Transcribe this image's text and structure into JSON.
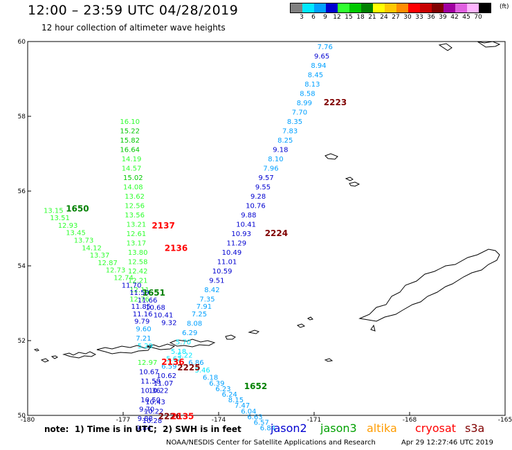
{
  "header": {
    "title": "12:00 – 23:59 UTC 04/28/2019",
    "subtitle": "12 hour collection of altimeter wave heights"
  },
  "legend": {
    "unit": "(ft)",
    "items": [
      {
        "label": "3",
        "color": "#808080"
      },
      {
        "label": "6",
        "color": "#00e8ff"
      },
      {
        "label": "9",
        "color": "#00a0ff"
      },
      {
        "label": "12",
        "color": "#0000d0"
      },
      {
        "label": "15",
        "color": "#30ff30"
      },
      {
        "label": "18",
        "color": "#00c800"
      },
      {
        "label": "21",
        "color": "#008000"
      },
      {
        "label": "24",
        "color": "#ffff00"
      },
      {
        "label": "27",
        "color": "#ffc800"
      },
      {
        "label": "30",
        "color": "#ff8c00"
      },
      {
        "label": "33",
        "color": "#ff0000"
      },
      {
        "label": "36",
        "color": "#c80000"
      },
      {
        "label": "39",
        "color": "#800000"
      },
      {
        "label": "42",
        "color": "#a000a0"
      },
      {
        "label": "45",
        "color": "#e060e0"
      },
      {
        "label": "70",
        "color": "#ffb4ff"
      },
      {
        "label": "",
        "color": "#000000"
      }
    ]
  },
  "map": {
    "lon_range": [
      -180,
      -165
    ],
    "lat_range": [
      50,
      60
    ],
    "lon_ticks": [
      "-180",
      "-177",
      "-174",
      "-171",
      "-168",
      "-165"
    ],
    "lat_ticks": [
      "60",
      "58",
      "56",
      "54",
      "52",
      "50"
    ],
    "tracks": [
      {
        "satellite": "jason3",
        "points": [
          {
            "lon": -177.1,
            "lat": 57.8,
            "value": "16.10",
            "color": "#30ff30"
          },
          {
            "lon": -177.1,
            "lat": 57.55,
            "value": "15.22",
            "color": "#00c800"
          },
          {
            "lon": -177.1,
            "lat": 57.3,
            "value": "15.82",
            "color": "#00c800"
          },
          {
            "lon": -177.1,
            "lat": 57.05,
            "value": "16.64",
            "color": "#00c800"
          },
          {
            "lon": -177.05,
            "lat": 56.8,
            "value": "14.19",
            "color": "#30ff30"
          },
          {
            "lon": -177.05,
            "lat": 56.55,
            "value": "14.57",
            "color": "#30ff30"
          },
          {
            "lon": -177.0,
            "lat": 56.3,
            "value": "15.02",
            "color": "#00c800"
          },
          {
            "lon": -177.0,
            "lat": 56.05,
            "value": "14.08",
            "color": "#30ff30"
          },
          {
            "lon": -176.95,
            "lat": 55.8,
            "value": "13.62",
            "color": "#30ff30"
          },
          {
            "lon": -176.95,
            "lat": 55.55,
            "value": "12.56",
            "color": "#30ff30"
          },
          {
            "lon": -176.95,
            "lat": 55.3,
            "value": "13.56",
            "color": "#30ff30"
          },
          {
            "lon": -176.9,
            "lat": 55.05,
            "value": "13.21",
            "color": "#30ff30"
          },
          {
            "lon": -176.9,
            "lat": 54.8,
            "value": "12.61",
            "color": "#30ff30"
          },
          {
            "lon": -176.9,
            "lat": 54.55,
            "value": "13.17",
            "color": "#30ff30"
          },
          {
            "lon": -176.85,
            "lat": 54.3,
            "value": "13.80",
            "color": "#30ff30"
          },
          {
            "lon": -176.85,
            "lat": 54.05,
            "value": "12.58",
            "color": "#30ff30"
          },
          {
            "lon": -176.85,
            "lat": 53.8,
            "value": "12.42",
            "color": "#30ff30"
          },
          {
            "lon": -176.85,
            "lat": 53.55,
            "value": "12.21",
            "color": "#30ff30"
          },
          {
            "lon": -176.8,
            "lat": 53.3,
            "value": "12.11",
            "color": "#30ff30"
          },
          {
            "lon": -176.8,
            "lat": 53.05,
            "value": "12.76",
            "color": "#30ff30"
          },
          {
            "lon": -176.75,
            "lat": 52.85,
            "value": "11.85",
            "color": "#0000d0"
          },
          {
            "lon": -176.7,
            "lat": 52.65,
            "value": "11.16",
            "color": "#0000d0"
          },
          {
            "lon": -176.65,
            "lat": 52.45,
            "value": "9.79",
            "color": "#0000d0"
          },
          {
            "lon": -176.6,
            "lat": 52.25,
            "value": "9.60",
            "color": "#00a0ff"
          },
          {
            "lon": -176.6,
            "lat": 52.0,
            "value": "7.21",
            "color": "#00a0ff"
          },
          {
            "lon": -176.55,
            "lat": 51.8,
            "value": "5.29",
            "color": "#00e8ff"
          },
          {
            "lon": -176.55,
            "lat": 51.35,
            "value": "12.97",
            "color": "#30ff30"
          },
          {
            "lon": -176.5,
            "lat": 51.1,
            "value": "10.67",
            "color": "#0000d0"
          },
          {
            "lon": -176.45,
            "lat": 50.85,
            "value": "11.58",
            "color": "#0000d0"
          },
          {
            "lon": -176.45,
            "lat": 50.6,
            "value": "10.36",
            "color": "#0000d0"
          },
          {
            "lon": -176.45,
            "lat": 50.35,
            "value": "10.50",
            "color": "#0000d0"
          },
          {
            "lon": -176.5,
            "lat": 50.1,
            "value": "9.70",
            "color": "#0000d0"
          },
          {
            "lon": -176.55,
            "lat": 49.85,
            "value": "9.88",
            "color": "#0000d0"
          },
          {
            "lon": -176.6,
            "lat": 49.6,
            "value": "9.84",
            "color": "#0000d0"
          }
        ]
      },
      {
        "satellite": "jason3",
        "points": [
          {
            "lon": -179.5,
            "lat": 55.42,
            "value": "13.15",
            "color": "#30ff30"
          },
          {
            "lon": -179.3,
            "lat": 55.22,
            "value": "13.51",
            "color": "#30ff30"
          },
          {
            "lon": -179.05,
            "lat": 55.02,
            "value": "12.93",
            "color": "#30ff30"
          },
          {
            "lon": -178.8,
            "lat": 54.82,
            "value": "13.45",
            "color": "#30ff30"
          },
          {
            "lon": -178.55,
            "lat": 54.62,
            "value": "13.73",
            "color": "#30ff30"
          },
          {
            "lon": -178.3,
            "lat": 54.42,
            "value": "14.12",
            "color": "#30ff30"
          },
          {
            "lon": -178.05,
            "lat": 54.22,
            "value": "13.37",
            "color": "#30ff30"
          },
          {
            "lon": -177.8,
            "lat": 54.02,
            "value": "12.87",
            "color": "#30ff30"
          },
          {
            "lon": -177.55,
            "lat": 53.82,
            "value": "12.73",
            "color": "#30ff30"
          },
          {
            "lon": -177.3,
            "lat": 53.62,
            "value": "12.74",
            "color": "#30ff30"
          },
          {
            "lon": -177.05,
            "lat": 53.42,
            "value": "11.70",
            "color": "#0000d0"
          },
          {
            "lon": -176.8,
            "lat": 53.22,
            "value": "11.59",
            "color": "#0000d0"
          },
          {
            "lon": -176.55,
            "lat": 53.02,
            "value": "11.66",
            "color": "#0000d0"
          },
          {
            "lon": -176.3,
            "lat": 52.82,
            "value": "10.68",
            "color": "#0000d0"
          },
          {
            "lon": -176.05,
            "lat": 52.62,
            "value": "10.41",
            "color": "#0000d0"
          },
          {
            "lon": -175.8,
            "lat": 52.42,
            "value": "9.32",
            "color": "#0000d0"
          }
        ]
      },
      {
        "satellite": "jason2",
        "points": [
          {
            "lon": -170.9,
            "lat": 59.8,
            "value": "7.76",
            "color": "#00a0ff"
          },
          {
            "lon": -171.0,
            "lat": 59.55,
            "value": "9.65",
            "color": "#0000d0"
          },
          {
            "lon": -171.1,
            "lat": 59.3,
            "value": "8.94",
            "color": "#00a0ff"
          },
          {
            "lon": -171.2,
            "lat": 59.05,
            "value": "8.45",
            "color": "#00a0ff"
          },
          {
            "lon": -171.3,
            "lat": 58.8,
            "value": "8.13",
            "color": "#00a0ff"
          },
          {
            "lon": -171.45,
            "lat": 58.55,
            "value": "8.58",
            "color": "#00a0ff"
          },
          {
            "lon": -171.55,
            "lat": 58.3,
            "value": "8.99",
            "color": "#00a0ff"
          },
          {
            "lon": -171.7,
            "lat": 58.05,
            "value": "7.70",
            "color": "#00a0ff"
          },
          {
            "lon": -171.85,
            "lat": 57.8,
            "value": "8.35",
            "color": "#00a0ff"
          },
          {
            "lon": -172.0,
            "lat": 57.55,
            "value": "7.83",
            "color": "#00a0ff"
          },
          {
            "lon": -172.15,
            "lat": 57.3,
            "value": "8.25",
            "color": "#00a0ff"
          },
          {
            "lon": -172.3,
            "lat": 57.05,
            "value": "9.18",
            "color": "#0000d0"
          },
          {
            "lon": -172.45,
            "lat": 56.8,
            "value": "8.10",
            "color": "#00a0ff"
          },
          {
            "lon": -172.6,
            "lat": 56.55,
            "value": "7.96",
            "color": "#00a0ff"
          },
          {
            "lon": -172.75,
            "lat": 56.3,
            "value": "9.57",
            "color": "#0000d0"
          },
          {
            "lon": -172.85,
            "lat": 56.05,
            "value": "9.55",
            "color": "#0000d0"
          },
          {
            "lon": -173.0,
            "lat": 55.8,
            "value": "9.28",
            "color": "#0000d0"
          },
          {
            "lon": -173.15,
            "lat": 55.55,
            "value": "10.76",
            "color": "#0000d0"
          },
          {
            "lon": -173.3,
            "lat": 55.3,
            "value": "9.88",
            "color": "#0000d0"
          },
          {
            "lon": -173.45,
            "lat": 55.05,
            "value": "10.41",
            "color": "#0000d0"
          },
          {
            "lon": -173.6,
            "lat": 54.8,
            "value": "10.93",
            "color": "#0000d0"
          },
          {
            "lon": -173.75,
            "lat": 54.55,
            "value": "11.29",
            "color": "#0000d0"
          },
          {
            "lon": -173.9,
            "lat": 54.3,
            "value": "10.49",
            "color": "#0000d0"
          },
          {
            "lon": -174.05,
            "lat": 54.05,
            "value": "11.01",
            "color": "#0000d0"
          },
          {
            "lon": -174.2,
            "lat": 53.8,
            "value": "10.59",
            "color": "#0000d0"
          },
          {
            "lon": -174.3,
            "lat": 53.55,
            "value": "9.51",
            "color": "#0000d0"
          },
          {
            "lon": -174.45,
            "lat": 53.3,
            "value": "8.42",
            "color": "#00a0ff"
          },
          {
            "lon": -174.6,
            "lat": 53.05,
            "value": "7.35",
            "color": "#00a0ff"
          },
          {
            "lon": -174.7,
            "lat": 52.85,
            "value": "7.91",
            "color": "#00a0ff"
          },
          {
            "lon": -174.85,
            "lat": 52.65,
            "value": "7.25",
            "color": "#00a0ff"
          },
          {
            "lon": -175.0,
            "lat": 52.4,
            "value": "8.08",
            "color": "#00a0ff"
          },
          {
            "lon": -175.15,
            "lat": 52.15,
            "value": "6.29",
            "color": "#00a0ff"
          },
          {
            "lon": -175.35,
            "lat": 51.9,
            "value": "5.70",
            "color": "#00e8ff"
          },
          {
            "lon": -175.5,
            "lat": 51.65,
            "value": "5.18",
            "color": "#00e8ff"
          },
          {
            "lon": -175.65,
            "lat": 51.45,
            "value": "5.62",
            "color": "#00e8ff"
          },
          {
            "lon": -175.8,
            "lat": 51.25,
            "value": "6.59",
            "color": "#00a0ff"
          },
          {
            "lon": -175.95,
            "lat": 51.0,
            "value": "10.62",
            "color": "#0000d0"
          },
          {
            "lon": -176.05,
            "lat": 50.8,
            "value": "11.07",
            "color": "#0000d0"
          },
          {
            "lon": -176.2,
            "lat": 50.6,
            "value": "10.22",
            "color": "#0000d0"
          },
          {
            "lon": -176.3,
            "lat": 50.3,
            "value": "10.43",
            "color": "#0000d0"
          },
          {
            "lon": -176.35,
            "lat": 50.05,
            "value": "10.22",
            "color": "#0000d0"
          },
          {
            "lon": -176.4,
            "lat": 49.8,
            "value": "10.28",
            "color": "#0000d0"
          }
        ]
      },
      {
        "satellite": "jason2",
        "points": [
          {
            "lon": -175.3,
            "lat": 51.55,
            "value": "5.22",
            "color": "#00e8ff"
          },
          {
            "lon": -174.95,
            "lat": 51.35,
            "value": "6.86",
            "color": "#00a0ff"
          },
          {
            "lon": -174.75,
            "lat": 51.15,
            "value": "5.46",
            "color": "#00e8ff"
          },
          {
            "lon": -174.5,
            "lat": 50.95,
            "value": "6.18",
            "color": "#00a0ff"
          },
          {
            "lon": -174.3,
            "lat": 50.8,
            "value": "6.39",
            "color": "#00a0ff"
          },
          {
            "lon": -174.1,
            "lat": 50.65,
            "value": "6.23",
            "color": "#00a0ff"
          },
          {
            "lon": -173.9,
            "lat": 50.5,
            "value": "6.24",
            "color": "#00a0ff"
          },
          {
            "lon": -173.7,
            "lat": 50.35,
            "value": "8.15",
            "color": "#00a0ff"
          },
          {
            "lon": -173.5,
            "lat": 50.2,
            "value": "7.47",
            "color": "#00a0ff"
          },
          {
            "lon": -173.3,
            "lat": 50.05,
            "value": "6.04",
            "color": "#00a0ff"
          },
          {
            "lon": -173.1,
            "lat": 49.9,
            "value": "6.63",
            "color": "#00a0ff"
          },
          {
            "lon": -172.9,
            "lat": 49.75,
            "value": "6.57",
            "color": "#00a0ff"
          },
          {
            "lon": -172.7,
            "lat": 49.6,
            "value": "6.84",
            "color": "#00a0ff"
          }
        ]
      }
    ],
    "time_labels": [
      {
        "text": "1650",
        "lon": -178.8,
        "lat": 55.45,
        "color": "#008000"
      },
      {
        "text": "1651",
        "lon": -176.4,
        "lat": 53.2,
        "color": "#008000"
      },
      {
        "text": "1652",
        "lon": -173.2,
        "lat": 50.7,
        "color": "#008000"
      },
      {
        "text": "2223",
        "lon": -170.7,
        "lat": 58.3,
        "color": "#800000"
      },
      {
        "text": "2224",
        "lon": -172.55,
        "lat": 54.8,
        "color": "#800000"
      },
      {
        "text": "2225",
        "lon": -175.3,
        "lat": 51.2,
        "color": "#800000"
      },
      {
        "text": "2226",
        "lon": -175.9,
        "lat": 49.9,
        "color": "#800000"
      },
      {
        "text": "2135",
        "lon": -175.5,
        "lat": 49.9,
        "color": "#ff0000"
      },
      {
        "text": "2136",
        "lon": -175.7,
        "lat": 54.4,
        "color": "#ff0000"
      },
      {
        "text": "2137",
        "lon": -176.1,
        "lat": 55.0,
        "color": "#ff0000"
      },
      {
        "text": "2136",
        "lon": -175.8,
        "lat": 51.35,
        "color": "#ff0000"
      }
    ]
  },
  "footer": {
    "note": "note:  1) Time is in UTC;  2) SWH is in feet",
    "satellites": [
      {
        "name": "jason2",
        "color": "#0000d0"
      },
      {
        "name": "jason3",
        "color": "#00a000"
      },
      {
        "name": "altika",
        "color": "#ff9c00"
      },
      {
        "name": "cryosat",
        "color": "#ff0000"
      },
      {
        "name": "s3a",
        "color": "#800000"
      }
    ],
    "credit": "NOAA/NESDIS Center for Satellite Applications and Research",
    "timestamp": "Apr 29 12:27:46 UTC 2019"
  }
}
